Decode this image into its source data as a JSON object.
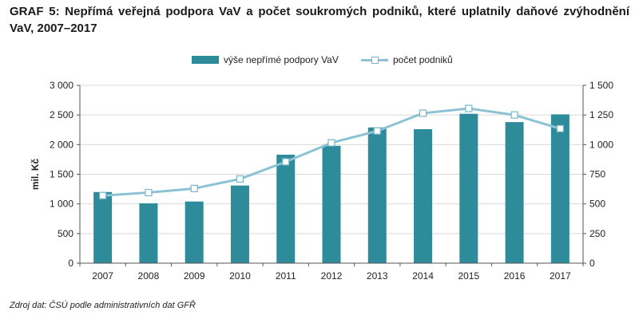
{
  "title": "GRAF 5: Nepřímá veřejná podpora VaV a počet soukromých podniků, které uplatnily daňové zvýhodnění VaV, 2007–2017",
  "source": "Zdroj dat: ČSÚ podle administrativních dat GFŘ",
  "colors": {
    "bar": "#2e8b9a",
    "line": "#8cc3d4",
    "marker_border": "#7bb6c9",
    "axis": "#555555",
    "grid": "#d9d9d9"
  },
  "chart_data": {
    "type": "bar",
    "title": "GRAF 5: Nepřímá veřejná podpora VaV a počet soukromých podniků, které uplatnily daňové zvýhodnění VaV, 2007–2017",
    "categories": [
      "2007",
      "2008",
      "2009",
      "2010",
      "2011",
      "2012",
      "2013",
      "2014",
      "2015",
      "2016",
      "2017"
    ],
    "ylabel": "mil. Kč",
    "ylim": [
      0,
      3000
    ],
    "y_ticks": [
      0,
      500,
      1000,
      1500,
      2000,
      2500,
      3000
    ],
    "y_tick_labels": [
      "0",
      "500",
      "1 000",
      "1 500",
      "2 000",
      "2 500",
      "3 000"
    ],
    "y2lim": [
      0,
      1500
    ],
    "y2_ticks": [
      0,
      250,
      500,
      750,
      1000,
      1250,
      1500
    ],
    "y2_tick_labels": [
      "0",
      "250",
      "500",
      "750",
      "1 000",
      "1 250",
      "1 500"
    ],
    "grid": true,
    "legend_position": "top-center",
    "series": [
      {
        "name": "výše nepřímé podpory VaV",
        "type": "bar",
        "axis": "left",
        "values": [
          1200,
          1010,
          1040,
          1310,
          1830,
          1980,
          2290,
          2260,
          2520,
          2380,
          2510
        ]
      },
      {
        "name": "počet podniků",
        "type": "line",
        "axis": "right",
        "values": [
          570,
          595,
          630,
          710,
          855,
          1015,
          1115,
          1265,
          1305,
          1250,
          1135
        ]
      }
    ]
  }
}
